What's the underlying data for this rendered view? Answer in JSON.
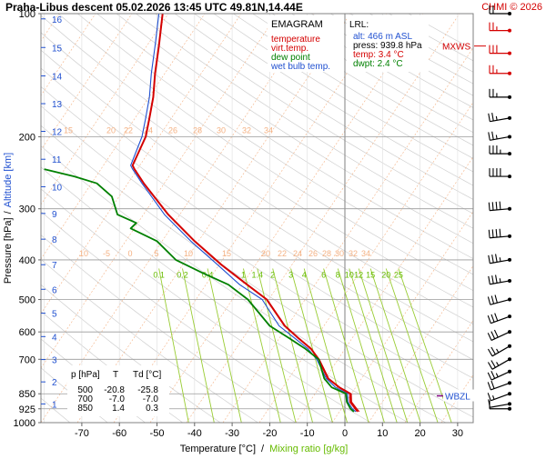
{
  "header": {
    "title": "Praha-Libus   descent   05.02.2026 13:45 UTC   49.81N,14.44E",
    "copyright": "CHMI © 2026"
  },
  "chart_data": {
    "type": "line",
    "subtype": "emagram",
    "title": "EMAGRAM",
    "ylabel_pressure": "Pressure [hPa]",
    "ylabel_sep": "/",
    "ylabel_altitude": "Altitude [km]",
    "xlabel_temperature": "Temperature [°C]",
    "xlabel_sep": "/",
    "xlabel_mixing": "Mixing ratio [g/kg]",
    "xlim": [
      -80,
      35
    ],
    "ylim": [
      1000,
      100
    ],
    "y_scale": "log",
    "grid": true,
    "x_ticks": [
      -70,
      -60,
      -50,
      -40,
      -30,
      -20,
      -10,
      0,
      10,
      20,
      30
    ],
    "pressure_ticks": [
      100,
      200,
      300,
      400,
      500,
      600,
      700,
      850,
      925,
      1000
    ],
    "altitude_ticks": [
      {
        "km": "1",
        "p": 900
      },
      {
        "km": "2",
        "p": 795
      },
      {
        "km": "3",
        "p": 701
      },
      {
        "km": "4",
        "p": 616
      },
      {
        "km": "5",
        "p": 540
      },
      {
        "km": "6",
        "p": 472
      },
      {
        "km": "7",
        "p": 411
      },
      {
        "km": "8",
        "p": 356
      },
      {
        "km": "9",
        "p": 308
      },
      {
        "km": "10",
        "p": 265
      },
      {
        "km": "11",
        "p": 227
      },
      {
        "km": "12",
        "p": 194
      },
      {
        "km": "13",
        "p": 166
      },
      {
        "km": "14",
        "p": 142
      },
      {
        "km": "15",
        "p": 121
      },
      {
        "km": "16",
        "p": 103
      }
    ],
    "legend": {
      "position": "top-center",
      "items": [
        {
          "label": "temperature",
          "color": "#d40000"
        },
        {
          "label": "virt.temp.",
          "color": "#d40000"
        },
        {
          "label": "dew point",
          "color": "#008000"
        },
        {
          "label": "wet bulb temp.",
          "color": "#2050d0"
        }
      ]
    },
    "isotherm_labels_upper": {
      "p": 200,
      "values": [
        "15",
        "20",
        "22",
        "24",
        "26",
        "28",
        "30",
        "32",
        "34"
      ]
    },
    "isotherm_labels_lower": {
      "p": 400,
      "values": [
        "10",
        "-5",
        "0",
        "5",
        "10",
        "15",
        "20",
        "22",
        "24",
        "26",
        "28",
        "30",
        "32",
        "34"
      ]
    },
    "mixing_ratio_labels": [
      "0.1",
      "0.2",
      "0.4",
      "1",
      "1.4",
      "2",
      "3",
      "4",
      "6",
      "8",
      "10",
      "12",
      "15",
      "20",
      "25"
    ],
    "mixing_ratio_values": [
      0.1,
      0.2,
      0.4,
      1,
      1.4,
      2,
      3,
      4,
      6,
      8,
      10,
      12,
      15,
      20,
      25
    ],
    "series": [
      {
        "name": "temperature",
        "color": "#d40000",
        "points": [
          [
            3.4,
            940
          ],
          [
            2.8,
            925
          ],
          [
            1.4,
            890
          ],
          [
            1.4,
            850
          ],
          [
            -1.5,
            820
          ],
          [
            -4.5,
            780
          ],
          [
            -7.0,
            700
          ],
          [
            -9.0,
            660
          ],
          [
            -12.5,
            620
          ],
          [
            -16.0,
            580
          ],
          [
            -20.8,
            500
          ],
          [
            -26.0,
            460
          ],
          [
            -33.0,
            410
          ],
          [
            -40.0,
            360
          ],
          [
            -47.0,
            310
          ],
          [
            -53.5,
            260
          ],
          [
            -56.0,
            240
          ],
          [
            -56.5,
            235
          ],
          [
            -53.0,
            200
          ],
          [
            -52.0,
            180
          ],
          [
            -51.0,
            160
          ],
          [
            -50.5,
            140
          ],
          [
            -49.5,
            120
          ],
          [
            -48.5,
            100
          ]
        ]
      },
      {
        "name": "virt.temp.",
        "color": "#d40000",
        "points": [
          [
            3.8,
            940
          ],
          [
            3.2,
            925
          ],
          [
            1.8,
            890
          ],
          [
            1.7,
            850
          ],
          [
            -1.3,
            820
          ],
          [
            -4.3,
            780
          ],
          [
            -6.8,
            700
          ],
          [
            -8.9,
            660
          ],
          [
            -12.4,
            620
          ],
          [
            -15.9,
            580
          ],
          [
            -20.7,
            500
          ],
          [
            -25.9,
            460
          ],
          [
            -32.9,
            410
          ],
          [
            -40.0,
            360
          ],
          [
            -47.0,
            310
          ],
          [
            -53.5,
            260
          ],
          [
            -56.0,
            240
          ],
          [
            -56.5,
            235
          ],
          [
            -53.0,
            200
          ],
          [
            -52.0,
            180
          ],
          [
            -51.0,
            160
          ],
          [
            -50.5,
            140
          ],
          [
            -49.5,
            120
          ],
          [
            -48.5,
            100
          ]
        ]
      },
      {
        "name": "wet bulb temp.",
        "color": "#2050d0",
        "points": [
          [
            2.9,
            940
          ],
          [
            2.0,
            925
          ],
          [
            0.8,
            890
          ],
          [
            0.7,
            850
          ],
          [
            -2.5,
            820
          ],
          [
            -5.0,
            780
          ],
          [
            -7.5,
            700
          ],
          [
            -9.8,
            660
          ],
          [
            -13.5,
            620
          ],
          [
            -17.5,
            580
          ],
          [
            -22.0,
            500
          ],
          [
            -28.0,
            460
          ],
          [
            -34.0,
            410
          ],
          [
            -41.0,
            360
          ],
          [
            -48.0,
            310
          ],
          [
            -54.0,
            260
          ],
          [
            -56.5,
            240
          ],
          [
            -57.0,
            235
          ],
          [
            -54.0,
            200
          ],
          [
            -53.0,
            180
          ],
          [
            -52.0,
            160
          ],
          [
            -51.5,
            140
          ],
          [
            -50.5,
            120
          ],
          [
            -49.5,
            100
          ]
        ]
      },
      {
        "name": "dew point",
        "color": "#008000",
        "points": [
          [
            2.4,
            940
          ],
          [
            1.5,
            925
          ],
          [
            0.5,
            890
          ],
          [
            0.3,
            850
          ],
          [
            -3.5,
            820
          ],
          [
            -5.5,
            780
          ],
          [
            -7.0,
            700
          ],
          [
            -10.5,
            660
          ],
          [
            -15.0,
            620
          ],
          [
            -20.0,
            580
          ],
          [
            -25.8,
            500
          ],
          [
            -31.0,
            460
          ],
          [
            -38.0,
            430
          ],
          [
            -45.0,
            400
          ],
          [
            -50.0,
            360
          ],
          [
            -57.0,
            335
          ],
          [
            -55.5,
            325
          ],
          [
            -60.5,
            310
          ],
          [
            -62.0,
            280
          ],
          [
            -66.0,
            260
          ],
          [
            -72.0,
            250
          ],
          [
            -80.0,
            240
          ]
        ]
      }
    ],
    "lrl_box": {
      "title": "LRL:",
      "alt": "alt: 466 m ASL",
      "press": "press: 939.8 hPa",
      "temp": "temp: 3.4 °C",
      "dwpt": "dwpt: 2.4 °C"
    },
    "level_table": {
      "header": [
        "p [hPa]",
        "T",
        "Td [°C]"
      ],
      "rows": [
        [
          "500",
          "-20.8",
          "-25.8"
        ],
        [
          "700",
          "-7.0",
          "-7.0"
        ],
        [
          "850",
          "1.4",
          "0.3"
        ]
      ]
    },
    "markers": {
      "mxws": {
        "label": "MXWS",
        "p": 120
      },
      "wbzl": {
        "label": "WBZL",
        "p": 860
      }
    },
    "wind_barbs": [
      {
        "p": 925,
        "ws": 10,
        "wd": 270
      },
      {
        "p": 900,
        "ws": 10,
        "wd": 260
      },
      {
        "p": 850,
        "ws": 15,
        "wd": 250
      },
      {
        "p": 800,
        "ws": 20,
        "wd": 250
      },
      {
        "p": 750,
        "ws": 25,
        "wd": 245
      },
      {
        "p": 700,
        "ws": 25,
        "wd": 240
      },
      {
        "p": 650,
        "ws": 25,
        "wd": 240
      },
      {
        "p": 600,
        "ws": 30,
        "wd": 245
      },
      {
        "p": 550,
        "ws": 30,
        "wd": 250
      },
      {
        "p": 500,
        "ws": 30,
        "wd": 255
      },
      {
        "p": 450,
        "ws": 35,
        "wd": 260
      },
      {
        "p": 400,
        "ws": 35,
        "wd": 260
      },
      {
        "p": 350,
        "ws": 40,
        "wd": 265
      },
      {
        "p": 300,
        "ws": 40,
        "wd": 265
      },
      {
        "p": 250,
        "ws": 40,
        "wd": 270
      },
      {
        "p": 220,
        "ws": 35,
        "wd": 270
      },
      {
        "p": 200,
        "ws": 25,
        "wd": 260
      },
      {
        "p": 180,
        "ws": 25,
        "wd": 260
      },
      {
        "p": 160,
        "ws": 25,
        "wd": 270
      },
      {
        "p": 140,
        "ws": 25,
        "wd": 270
      },
      {
        "p": 125,
        "ws": 30,
        "wd": 270
      },
      {
        "p": 110,
        "ws": 25,
        "wd": 270
      },
      {
        "p": 100,
        "ws": 20,
        "wd": 270
      }
    ]
  }
}
